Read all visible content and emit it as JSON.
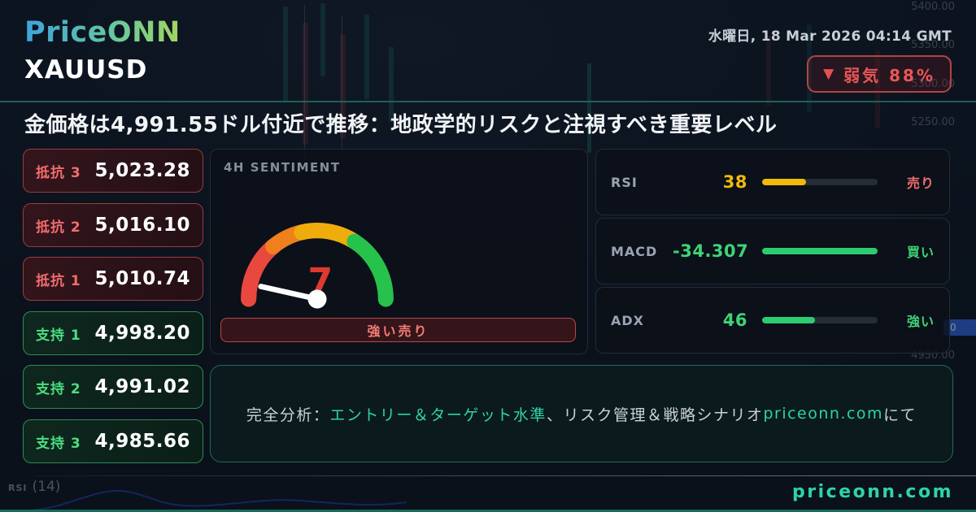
{
  "brand": {
    "logo_text": "PriceONN"
  },
  "header": {
    "datetime": "水曜日, 18 Mar 2026 04:14 GMT",
    "symbol": "XAUUSD",
    "badge": {
      "arrow": "▼",
      "text": "弱気 88%"
    },
    "headline": "金価格は4,991.55ドル付近で推移：地政学的リスクと注視すべき重要レベル"
  },
  "levels": {
    "resistance": [
      {
        "label": "抵抗 3",
        "value": "5,023.28"
      },
      {
        "label": "抵抗 2",
        "value": "5,016.10"
      },
      {
        "label": "抵抗 1",
        "value": "5,010.74"
      }
    ],
    "support": [
      {
        "label": "支持 1",
        "value": "4,998.20"
      },
      {
        "label": "支持 2",
        "value": "4,991.02"
      },
      {
        "label": "支持 3",
        "value": "4,985.66"
      }
    ]
  },
  "sentiment": {
    "title": "4H SENTIMENT",
    "value": 7,
    "max": 100,
    "display_value": "7",
    "label": "強い売り",
    "arc_colors": [
      "#e9483f",
      "#f07f1d",
      "#eead0c",
      "#27c24c"
    ],
    "value_color": "#e0392f",
    "needle_color": "#ffffff"
  },
  "indicators": [
    {
      "name": "RSI",
      "value": "38",
      "percent": 38,
      "signal": "売り",
      "value_color": "#f0b90b",
      "bar_color": "#f0b90b",
      "signal_color": "#f26d6d"
    },
    {
      "name": "MACD",
      "value": "-34.307",
      "percent": 100,
      "signal": "買い",
      "value_color": "#3ed476",
      "bar_color": "#2ecc71",
      "signal_color": "#3ed476"
    },
    {
      "name": "ADX",
      "value": "46",
      "percent": 46,
      "signal": "強い",
      "value_color": "#3ed476",
      "bar_color": "#2ecc71",
      "signal_color": "#3ed476"
    }
  ],
  "summary": {
    "segments": [
      {
        "text": "完全分析：",
        "color": "#c9d1d9"
      },
      {
        "text": "エントリー＆ターゲット水準",
        "color": "#2dd4a7"
      },
      {
        "text": "、リスク管理＆戦略シナリオ ",
        "color": "#c9d1d9"
      },
      {
        "text": "priceonn.com",
        "color": "#2dd4a7"
      },
      {
        "text": "にて",
        "color": "#c9d1d9"
      }
    ]
  },
  "footer": {
    "chart_label": "RSI",
    "chart_period": "(14)",
    "watermark": "priceonn.com"
  },
  "background_chart": {
    "price_ticks": [
      "5400.00",
      "5350.00",
      "5300.00",
      "5250.00",
      "4950.00"
    ],
    "price_tag": "0"
  }
}
